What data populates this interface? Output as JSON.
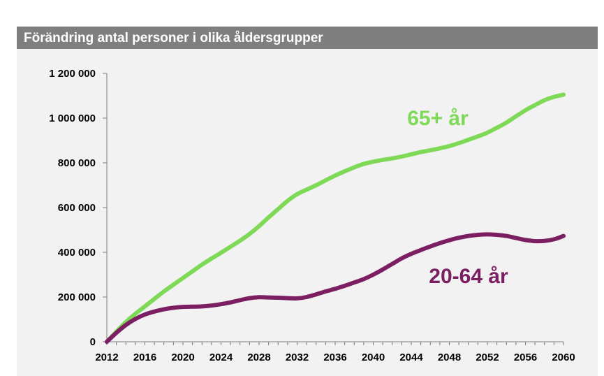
{
  "chart_data": {
    "type": "line",
    "title": "Förändring antal personer i olika åldersgrupper",
    "xlabel": "",
    "ylabel": "",
    "xlim": [
      2012,
      2060
    ],
    "ylim": [
      0,
      1200000
    ],
    "x_ticks": [
      "2012",
      "2016",
      "2020",
      "2024",
      "2028",
      "2032",
      "2036",
      "2040",
      "2044",
      "2048",
      "2052",
      "2056",
      "2060"
    ],
    "y_ticks": [
      "0",
      "200 000",
      "400 000",
      "600 000",
      "800 000",
      "1 000 000",
      "1 200 000"
    ],
    "grid": false,
    "legend": "none",
    "x": [
      2012,
      2013,
      2014,
      2015,
      2016,
      2017,
      2018,
      2019,
      2020,
      2021,
      2022,
      2023,
      2024,
      2025,
      2026,
      2027,
      2028,
      2029,
      2030,
      2031,
      2032,
      2033,
      2034,
      2035,
      2036,
      2037,
      2038,
      2039,
      2040,
      2041,
      2042,
      2043,
      2044,
      2045,
      2046,
      2047,
      2048,
      2049,
      2050,
      2051,
      2052,
      2053,
      2054,
      2055,
      2056,
      2057,
      2058,
      2059,
      2060
    ],
    "series": [
      {
        "name": "65+ år",
        "color": "#7ed957",
        "values": [
          0,
          45000,
          88000,
          125000,
          158000,
          192000,
          225000,
          255000,
          285000,
          315000,
          345000,
          372000,
          398000,
          425000,
          452000,
          482000,
          517000,
          556000,
          593000,
          630000,
          660000,
          680000,
          700000,
          722000,
          743000,
          762000,
          780000,
          795000,
          805000,
          813000,
          820000,
          828000,
          838000,
          848000,
          856000,
          865000,
          875000,
          888000,
          903000,
          918000,
          935000,
          957000,
          980000,
          1008000,
          1035000,
          1058000,
          1080000,
          1095000,
          1105000
        ]
      },
      {
        "name": "20-64 år",
        "color": "#7b1e62",
        "values": [
          0,
          40000,
          75000,
          102000,
          122000,
          135000,
          145000,
          152000,
          156000,
          157000,
          158000,
          162000,
          168000,
          176000,
          186000,
          195000,
          199000,
          198000,
          197000,
          195000,
          194000,
          200000,
          212000,
          225000,
          237000,
          250000,
          265000,
          280000,
          300000,
          323000,
          348000,
          373000,
          393000,
          410000,
          426000,
          441000,
          454000,
          465000,
          473000,
          478000,
          480000,
          478000,
          473000,
          464000,
          455000,
          450000,
          451000,
          458000,
          473000
        ]
      }
    ]
  }
}
